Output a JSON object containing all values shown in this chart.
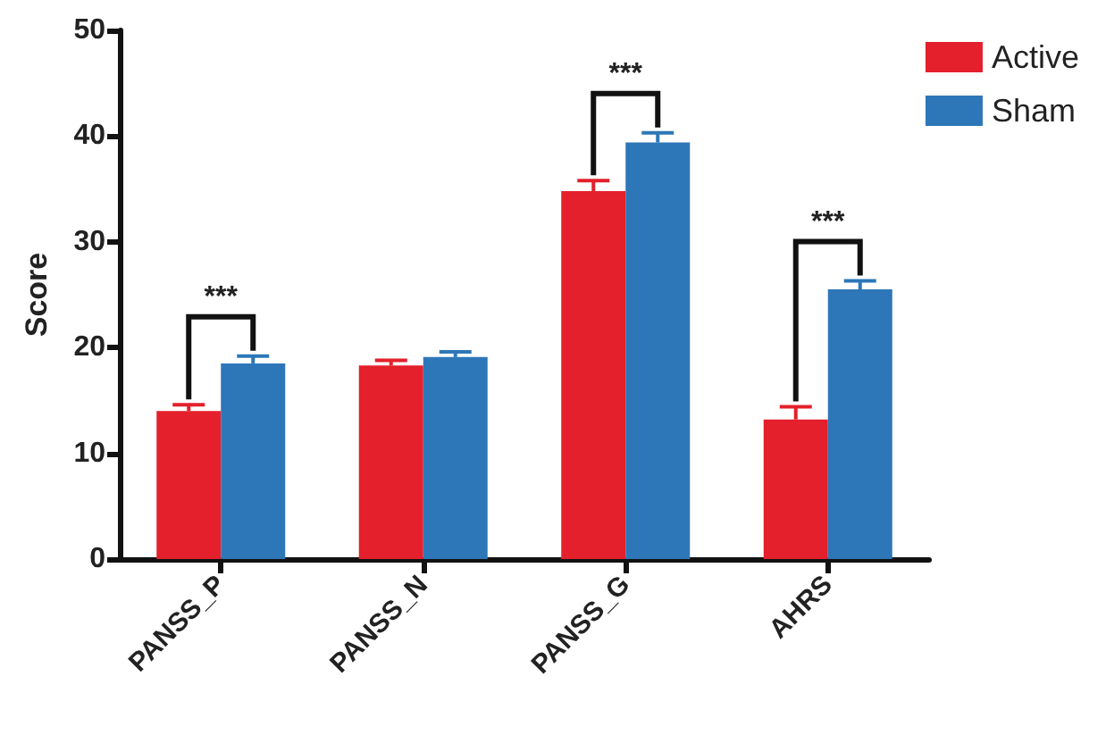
{
  "chart_data": {
    "type": "bar",
    "ylabel": "Score",
    "categories": [
      "PANSS_P",
      "PANSS_N",
      "PANSS_G",
      "AHRS"
    ],
    "series": [
      {
        "name": "Active",
        "color": "#e3202b",
        "values": [
          14,
          18.3,
          34.8,
          13.2
        ],
        "errors": [
          0.6,
          0.5,
          1.0,
          1.2
        ]
      },
      {
        "name": "Sham",
        "color": "#2d77b8",
        "values": [
          18.5,
          19.1,
          39.4,
          25.5
        ],
        "errors": [
          0.7,
          0.5,
          0.9,
          0.8
        ]
      }
    ],
    "ylim": [
      0,
      50
    ],
    "yticks": [
      0,
      10,
      20,
      30,
      40,
      50
    ],
    "grid": false,
    "legend": "top right",
    "annotations": [
      "***",
      "***",
      "***"
    ]
  }
}
